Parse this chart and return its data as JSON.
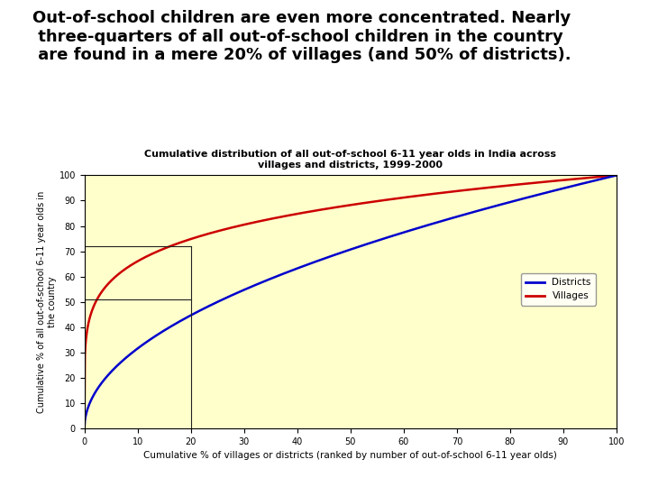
{
  "title_main": "Out-of-school children are even more concentrated. Nearly\n three-quarters of all out-of-school children in the country\n are found in a mere 20% of villages (and 50% of districts).",
  "chart_title_line1": "Cumulative distribution of all out-of-school 6-11 year olds in India across",
  "chart_title_line2": "villages and districts, 1999-2000",
  "xlabel": "Cumulative % of villages or districts (ranked by number of out-of-school 6-11 year olds)",
  "ylabel": "Cumulative % of all out-of-school 6-11 year olds in\nthe country",
  "xlim": [
    0,
    100
  ],
  "ylim": [
    0,
    100
  ],
  "xticks": [
    0,
    10,
    20,
    30,
    40,
    50,
    60,
    70,
    80,
    90,
    100
  ],
  "yticks": [
    0,
    10,
    20,
    30,
    40,
    50,
    60,
    70,
    80,
    90,
    100
  ],
  "plot_bg_color": "#ffffcc",
  "fig_bg_color": "#ffffff",
  "village_color": "#cc0000",
  "district_color": "#0000cc",
  "crosshair_color": "#202020",
  "crosshair_x": 20,
  "crosshair_y_village": 72,
  "crosshair_y_district": 51,
  "legend_labels": [
    "Districts",
    "Villages"
  ],
  "legend_colors": [
    "#0000cc",
    "#cc0000"
  ],
  "village_alpha": 0.18,
  "district_alpha": 0.5
}
